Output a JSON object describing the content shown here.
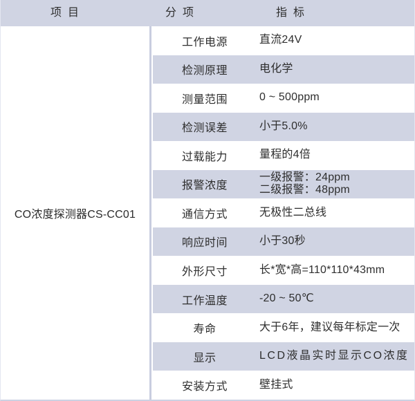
{
  "table": {
    "header": {
      "item": "项目",
      "sub_item": "分项",
      "spec": "指标"
    },
    "product": "CO浓度探测器CS-CC01",
    "rows": [
      {
        "label": "工作电源",
        "value": "直流24V"
      },
      {
        "label": "检测原理",
        "value": "电化学"
      },
      {
        "label": "测量范围",
        "value": "0 ~ 500ppm"
      },
      {
        "label": "检测误差",
        "value": "小于5.0%"
      },
      {
        "label": "过载能力",
        "value": "量程的4倍"
      },
      {
        "label": "报警浓度",
        "value": "一级报警：24ppm\n二级报警：48ppm"
      },
      {
        "label": "通信方式",
        "value": "无极性二总线"
      },
      {
        "label": "响应时间",
        "value": "小于30秒"
      },
      {
        "label": "外形尺寸",
        "value": "长*宽*高=110*110*43mm"
      },
      {
        "label": "工作温度",
        "value": "-20 ~ 50℃"
      },
      {
        "label": "寿命",
        "value": "大于6年，建议每年标定一次"
      },
      {
        "label": "显示",
        "value": "LCD液晶实时显示CO浓度",
        "spaced": true
      },
      {
        "label": "安装方式",
        "value": "壁挂式"
      }
    ],
    "colors": {
      "stripe": "#d0d4e3",
      "header_bg": "#d0d4e3",
      "divider": "#c8cddf",
      "text": "#2e2e2e"
    }
  }
}
